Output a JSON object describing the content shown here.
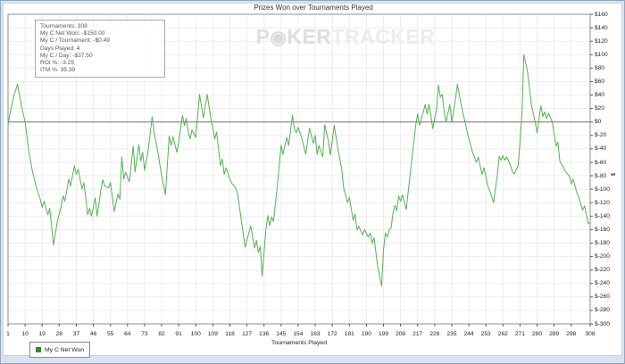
{
  "watermark": {
    "poker_p": "P",
    "chip_icon": "◉",
    "poker_rest": "KER",
    "tracker": "TRACKER"
  },
  "stats_box": {
    "lines": [
      "Tournaments: 308",
      "My C Net Won: -$150.00",
      "My C / Tournament: -$0.49",
      "Days Played: 4",
      "My C / Day: -$37.50",
      "ROI %: -3.25",
      "ITM %: 35.39"
    ]
  },
  "legend": {
    "label": "My C Net Won",
    "swatch_color": "#2e8b2e"
  },
  "colors": {
    "line": "#55b055",
    "grid": "#ededed",
    "axis": "#8c8c8c",
    "zero_line": "#777777",
    "tick": "#555555",
    "frame_bg": "#d7e3f1",
    "frame_border": "#93a6bd"
  },
  "chart_data": {
    "type": "line",
    "title": "Prizes Won over Tournaments Played",
    "xlabel": "Tournaments Played",
    "ylabel": "$",
    "grid": true,
    "legend_position": "bottom-left",
    "xlim": [
      1,
      308
    ],
    "ylim": [
      -300,
      160
    ],
    "y_tick_step": 20,
    "x_ticks": [
      1,
      10,
      19,
      28,
      37,
      46,
      55,
      64,
      73,
      82,
      91,
      100,
      109,
      118,
      127,
      136,
      145,
      154,
      163,
      172,
      181,
      190,
      199,
      208,
      217,
      226,
      235,
      244,
      253,
      262,
      271,
      280,
      289,
      298,
      308
    ],
    "y_ticks": [
      160,
      140,
      120,
      100,
      80,
      60,
      40,
      20,
      0,
      -20,
      -40,
      -60,
      -80,
      -100,
      -120,
      -140,
      -160,
      -180,
      -200,
      -220,
      -240,
      -260,
      -280,
      -300
    ],
    "y_tick_labels": [
      "$160",
      "$140",
      "$120",
      "$100",
      "$80",
      "$60",
      "$40",
      "$20",
      "$0",
      "$-20",
      "$-40",
      "$-60",
      "$-80",
      "$-100",
      "$-120",
      "$-140",
      "$-160",
      "$-180",
      "$-200",
      "$-220",
      "$-240",
      "$-260",
      "$-280",
      "$-300"
    ],
    "series": [
      {
        "name": "My C Net Won",
        "color": "#55b055",
        "points": [
          [
            1,
            -5
          ],
          [
            2,
            12
          ],
          [
            3,
            25
          ],
          [
            4,
            38
          ],
          [
            6,
            56
          ],
          [
            8,
            25
          ],
          [
            10,
            0
          ],
          [
            12,
            -45
          ],
          [
            14,
            -75
          ],
          [
            16,
            -98
          ],
          [
            18,
            -115
          ],
          [
            19,
            -127
          ],
          [
            20,
            -118
          ],
          [
            22,
            -138
          ],
          [
            23,
            -128
          ],
          [
            25,
            -183
          ],
          [
            27,
            -148
          ],
          [
            29,
            -125
          ],
          [
            30,
            -110
          ],
          [
            31,
            -118
          ],
          [
            33,
            -85
          ],
          [
            34,
            -95
          ],
          [
            36,
            -65
          ],
          [
            37,
            -78
          ],
          [
            38,
            -70
          ],
          [
            40,
            -100
          ],
          [
            41,
            -90
          ],
          [
            43,
            -138
          ],
          [
            44,
            -128
          ],
          [
            45,
            -140
          ],
          [
            47,
            -113
          ],
          [
            48,
            -140
          ],
          [
            50,
            -100
          ],
          [
            51,
            -86
          ],
          [
            52,
            -95
          ],
          [
            54,
            -98
          ],
          [
            55,
            -90
          ],
          [
            57,
            -133
          ],
          [
            59,
            -107
          ],
          [
            60,
            -115
          ],
          [
            61,
            -52
          ],
          [
            62,
            -85
          ],
          [
            63,
            -75
          ],
          [
            65,
            -89
          ],
          [
            67,
            -36
          ],
          [
            68,
            -74
          ],
          [
            70,
            -34
          ],
          [
            71,
            -58
          ],
          [
            72,
            -45
          ],
          [
            73,
            -72
          ],
          [
            75,
            -40
          ],
          [
            77,
            8
          ],
          [
            78,
            -15
          ],
          [
            80,
            -45
          ],
          [
            82,
            -80
          ],
          [
            84,
            -108
          ],
          [
            86,
            -21
          ],
          [
            87,
            -35
          ],
          [
            88,
            -22
          ],
          [
            90,
            -45
          ],
          [
            91,
            -30
          ],
          [
            93,
            10
          ],
          [
            94,
            -5
          ],
          [
            95,
            5
          ],
          [
            96,
            -15
          ],
          [
            97,
            -25
          ],
          [
            98,
            -12
          ],
          [
            100,
            -23
          ],
          [
            102,
            41
          ],
          [
            104,
            6
          ],
          [
            106,
            41
          ],
          [
            108,
            5
          ],
          [
            109,
            -9
          ],
          [
            110,
            -25
          ],
          [
            111,
            -15
          ],
          [
            113,
            -65
          ],
          [
            114,
            -55
          ],
          [
            115,
            -78
          ],
          [
            116,
            -68
          ],
          [
            118,
            -85
          ],
          [
            119,
            -91
          ],
          [
            121,
            -98
          ],
          [
            122,
            -106
          ],
          [
            124,
            -145
          ],
          [
            126,
            -186
          ],
          [
            128,
            -165
          ],
          [
            129,
            -154
          ],
          [
            131,
            -187
          ],
          [
            132,
            -176
          ],
          [
            133,
            -194
          ],
          [
            134,
            -185
          ],
          [
            135,
            -229
          ],
          [
            137,
            -160
          ],
          [
            138,
            -139
          ],
          [
            139,
            -154
          ],
          [
            140,
            -141
          ],
          [
            141,
            -148
          ],
          [
            143,
            -95
          ],
          [
            145,
            -35
          ],
          [
            146,
            -48
          ],
          [
            148,
            -23
          ],
          [
            149,
            -35
          ],
          [
            151,
            10
          ],
          [
            152,
            -10
          ],
          [
            153,
            -16
          ],
          [
            154,
            -8
          ],
          [
            156,
            -25
          ],
          [
            158,
            -48
          ],
          [
            160,
            -9
          ],
          [
            162,
            -32
          ],
          [
            163,
            -20
          ],
          [
            164,
            -48
          ],
          [
            165,
            -35
          ],
          [
            167,
            -52
          ],
          [
            168,
            -4
          ],
          [
            170,
            -29
          ],
          [
            171,
            -49
          ],
          [
            173,
            -5
          ],
          [
            175,
            -40
          ],
          [
            177,
            -71
          ],
          [
            178,
            -98
          ],
          [
            180,
            -120
          ],
          [
            181,
            -112
          ],
          [
            183,
            -146
          ],
          [
            184,
            -137
          ],
          [
            185,
            -161
          ],
          [
            186,
            -155
          ],
          [
            188,
            -168
          ],
          [
            189,
            -160
          ],
          [
            191,
            -171
          ],
          [
            192,
            -165
          ],
          [
            193,
            -180
          ],
          [
            194,
            -172
          ],
          [
            196,
            -215
          ],
          [
            198,
            -244
          ],
          [
            199,
            -191
          ],
          [
            200,
            -165
          ],
          [
            201,
            -171
          ],
          [
            202,
            -160
          ],
          [
            203,
            -158
          ],
          [
            204,
            -135
          ],
          [
            205,
            -124
          ],
          [
            206,
            -132
          ],
          [
            207,
            -110
          ],
          [
            208,
            -118
          ],
          [
            209,
            -108
          ],
          [
            211,
            -130
          ],
          [
            213,
            -80
          ],
          [
            214,
            -54
          ],
          [
            216,
            -5
          ],
          [
            217,
            12
          ],
          [
            218,
            -5
          ],
          [
            220,
            15
          ],
          [
            221,
            26
          ],
          [
            222,
            12
          ],
          [
            223,
            26
          ],
          [
            224,
            10
          ],
          [
            225,
            -10
          ],
          [
            227,
            20
          ],
          [
            228,
            55
          ],
          [
            229,
            37
          ],
          [
            230,
            41
          ],
          [
            231,
            15
          ],
          [
            232,
            0
          ],
          [
            234,
            26
          ],
          [
            235,
            -1
          ],
          [
            237,
            35
          ],
          [
            238,
            56
          ],
          [
            240,
            25
          ],
          [
            242,
            0
          ],
          [
            244,
            -25
          ],
          [
            246,
            -45
          ],
          [
            248,
            -60
          ],
          [
            249,
            -52
          ],
          [
            251,
            -78
          ],
          [
            252,
            -68
          ],
          [
            254,
            -95
          ],
          [
            256,
            -110
          ],
          [
            257,
            -120
          ],
          [
            259,
            -80
          ],
          [
            260,
            -51
          ],
          [
            261,
            -57
          ],
          [
            262,
            -50
          ],
          [
            263,
            -57
          ],
          [
            264,
            -52
          ],
          [
            266,
            -65
          ],
          [
            267,
            -74
          ],
          [
            268,
            -77
          ],
          [
            270,
            -65
          ],
          [
            271,
            -30
          ],
          [
            272,
            10
          ],
          [
            273,
            100
          ],
          [
            275,
            74
          ],
          [
            276,
            50
          ],
          [
            277,
            25
          ],
          [
            279,
            0
          ],
          [
            280,
            -16
          ],
          [
            282,
            24
          ],
          [
            283,
            8
          ],
          [
            284,
            15
          ],
          [
            285,
            5
          ],
          [
            286,
            13
          ],
          [
            288,
            0
          ],
          [
            290,
            -36
          ],
          [
            291,
            -30
          ],
          [
            292,
            -58
          ],
          [
            294,
            -68
          ],
          [
            295,
            -74
          ],
          [
            297,
            -80
          ],
          [
            298,
            -92
          ],
          [
            299,
            -85
          ],
          [
            301,
            -105
          ],
          [
            302,
            -112
          ],
          [
            304,
            -131
          ],
          [
            305,
            -125
          ],
          [
            307,
            -151
          ],
          [
            308,
            -150
          ]
        ]
      }
    ]
  }
}
